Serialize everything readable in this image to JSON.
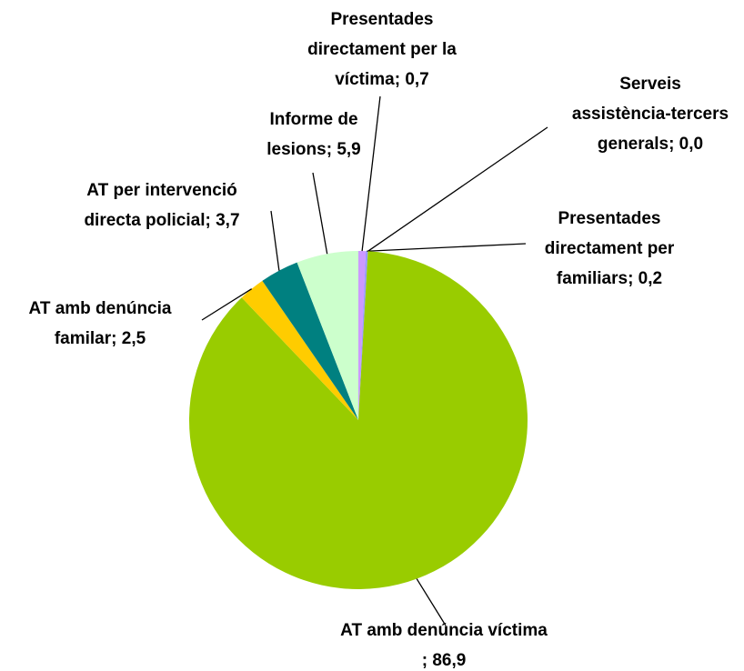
{
  "chart_data": {
    "type": "pie",
    "categories": [
      "Presentades directament per la víctima",
      "Presentades directament per familiars",
      "Serveis assistència-tercers generals",
      "AT amb denúncia víctima",
      "AT amb denúncia familar",
      "AT per intervenció directa policial",
      "Informe de lesions"
    ],
    "values": [
      0.7,
      0.2,
      0.0,
      86.9,
      2.5,
      3.7,
      5.9
    ],
    "value_labels": [
      "0,7",
      "0,2",
      "0,0",
      "86,9",
      "2,5",
      "3,7",
      "5,9"
    ],
    "label_separator": "; ",
    "colors": [
      "#cc99ff",
      "#9999ff",
      "#ff99cc",
      "#99cc00",
      "#ffcc00",
      "#008080",
      "#ccffcc"
    ]
  }
}
